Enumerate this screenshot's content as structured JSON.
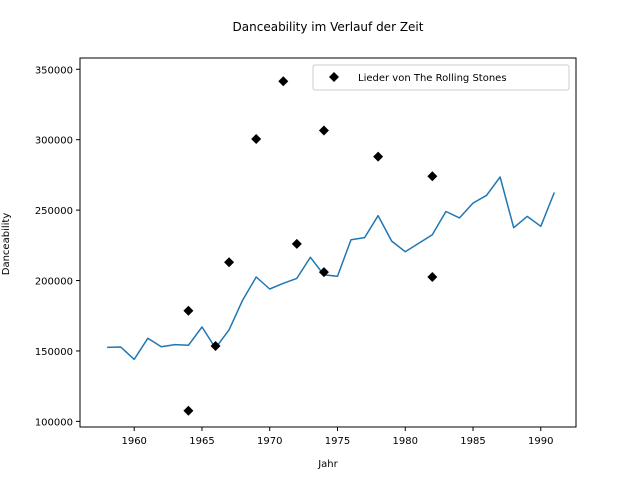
{
  "chart_data": {
    "type": "line",
    "title": "Danceability im Verlauf der Zeit",
    "xlabel": "Jahr",
    "ylabel": "Danceability",
    "xlim": [
      1956,
      1992.6
    ],
    "ylim": [
      96000,
      358000
    ],
    "x_ticks": [
      1960,
      1965,
      1970,
      1975,
      1980,
      1985,
      1990
    ],
    "y_ticks": [
      100000,
      150000,
      200000,
      250000,
      300000,
      350000
    ],
    "grid": false,
    "legend_position": "top-right",
    "series": [
      {
        "type": "line",
        "color": "#1f77b4",
        "x": [
          1958,
          1959,
          1960,
          1961,
          1962,
          1963,
          1964,
          1965,
          1966,
          1967,
          1968,
          1969,
          1970,
          1971,
          1972,
          1973,
          1974,
          1975,
          1976,
          1977,
          1978,
          1979,
          1980,
          1981,
          1982,
          1983,
          1984,
          1985,
          1986,
          1987,
          1988,
          1989,
          1990,
          1991
        ],
        "y": [
          152500,
          152800,
          144000,
          159000,
          153000,
          154500,
          154000,
          167000,
          152000,
          165000,
          186000,
          202500,
          194000,
          198000,
          201500,
          216500,
          204000,
          203000,
          229000,
          230500,
          246000,
          228000,
          220500,
          226500,
          232500,
          249000,
          244500,
          255000,
          260500,
          273500,
          237500,
          245500,
          238500,
          262500
        ]
      },
      {
        "type": "scatter",
        "name": "Lieder von The Rolling Stones",
        "color": "#000000",
        "marker": "diamond",
        "x": [
          1964,
          1964,
          1966,
          1967,
          1969,
          1971,
          1972,
          1974,
          1974,
          1978,
          1982,
          1982
        ],
        "y": [
          178500,
          107500,
          153500,
          213000,
          300500,
          341500,
          226000,
          306500,
          206000,
          288000,
          274000,
          202500
        ]
      }
    ]
  }
}
